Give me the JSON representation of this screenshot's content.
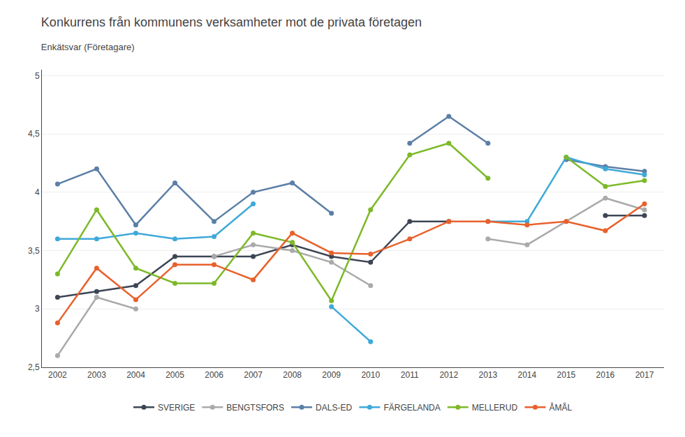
{
  "chart_data": {
    "type": "line",
    "title": "Konkurrens från kommunens verksamheter mot de privata företagen",
    "subtitle": "Enkätsvar (Företagare)",
    "x": [
      2002,
      2003,
      2004,
      2005,
      2006,
      2007,
      2008,
      2009,
      2010,
      2011,
      2012,
      2013,
      2014,
      2015,
      2016,
      2017
    ],
    "series": [
      {
        "name": "SVERIGE",
        "color": "#3d4555",
        "values": [
          3.1,
          3.15,
          3.2,
          3.45,
          3.45,
          3.45,
          3.55,
          3.45,
          3.4,
          3.75,
          3.75,
          null,
          null,
          null,
          3.8,
          3.8
        ]
      },
      {
        "name": "BENGTSFORS",
        "color": "#aaaaaa",
        "values": [
          2.6,
          3.1,
          3.0,
          null,
          3.45,
          3.55,
          3.5,
          3.4,
          3.2,
          null,
          null,
          3.6,
          3.55,
          3.75,
          3.95,
          3.85
        ]
      },
      {
        "name": "DALS-ED",
        "color": "#5b7fa6",
        "values": [
          4.07,
          4.2,
          3.72,
          4.08,
          3.75,
          4.0,
          4.08,
          3.82,
          null,
          4.42,
          4.65,
          4.42,
          null,
          4.28,
          4.22,
          4.18
        ]
      },
      {
        "name": "FÄRGELANDA",
        "color": "#3fa9d9",
        "values": [
          3.6,
          3.6,
          3.65,
          3.6,
          3.62,
          3.9,
          null,
          3.02,
          2.72,
          null,
          null,
          3.75,
          3.75,
          4.3,
          4.2,
          4.15
        ]
      },
      {
        "name": "MELLERUD",
        "color": "#7db928",
        "values": [
          3.3,
          3.85,
          3.35,
          3.22,
          3.22,
          3.65,
          3.57,
          3.07,
          3.85,
          4.32,
          4.42,
          4.12,
          null,
          4.3,
          4.05,
          4.1
        ]
      },
      {
        "name": "ÅMÅL",
        "color": "#e8612c",
        "values": [
          2.88,
          3.35,
          3.08,
          3.38,
          3.38,
          3.25,
          3.65,
          3.48,
          3.47,
          3.6,
          3.75,
          3.75,
          3.72,
          3.75,
          3.67,
          3.9
        ]
      }
    ],
    "xlim": [
      2001.6,
      2017.5
    ],
    "xticks": [
      2002,
      2003,
      2004,
      2005,
      2006,
      2007,
      2008,
      2009,
      2010,
      2011,
      2012,
      2013,
      2014,
      2015,
      2016,
      2017
    ],
    "ylim": [
      2.5,
      5.05
    ],
    "yticks": [
      {
        "value": 2.5,
        "label": "2,5"
      },
      3,
      {
        "value": 3.5,
        "label": "3,5"
      },
      4,
      {
        "value": 4.5,
        "label": "4,5"
      },
      5
    ],
    "grid": true,
    "legend": "bottom",
    "marker": "circle"
  }
}
